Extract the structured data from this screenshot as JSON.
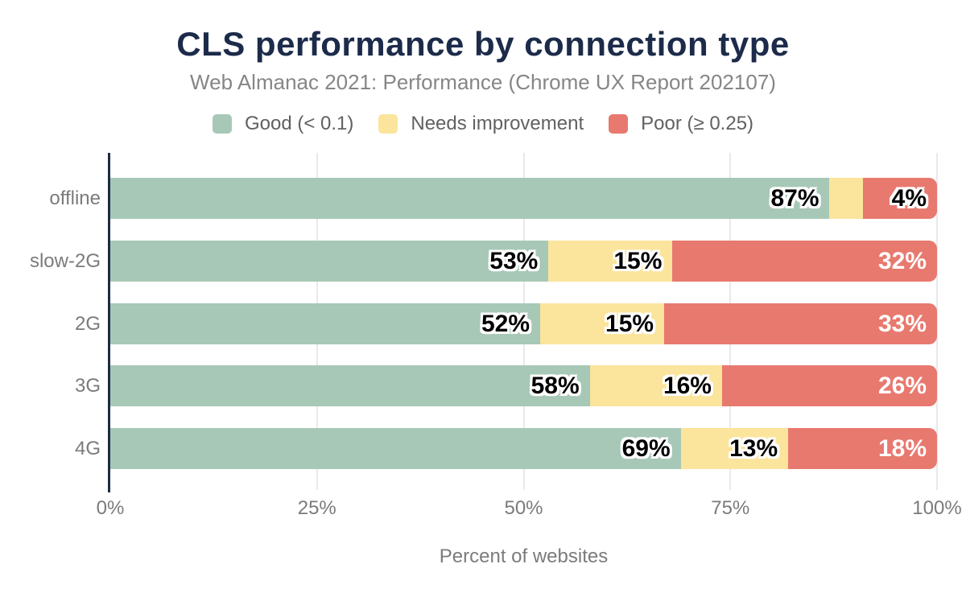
{
  "chart_data": {
    "type": "bar",
    "variant": "horizontal-stacked",
    "title": "CLS performance by connection type",
    "subtitle": "Web Almanac 2021: Performance (Chrome UX Report 202107)",
    "xlabel": "Percent of websites",
    "xlim": [
      0,
      100
    ],
    "x_ticks": [
      {
        "label": "0%",
        "value": 0
      },
      {
        "label": "25%",
        "value": 25
      },
      {
        "label": "50%",
        "value": 50
      },
      {
        "label": "75%",
        "value": 75
      },
      {
        "label": "100%",
        "value": 100
      }
    ],
    "gridlines": true,
    "legend_position": "top",
    "categories": [
      "offline",
      "slow-2G",
      "2G",
      "3G",
      "4G"
    ],
    "series": [
      {
        "name": "Good (< 0.1)",
        "color": "#a7c8b6",
        "values": [
          87,
          53,
          52,
          58,
          69
        ]
      },
      {
        "name": "Needs improvement",
        "color": "#fbe49c",
        "values": [
          4,
          15,
          15,
          16,
          13
        ]
      },
      {
        "name": "Poor (≥ 0.25)",
        "color": "#e8796f",
        "values": [
          9,
          32,
          33,
          26,
          18
        ]
      }
    ],
    "bar_labels": [
      [
        {
          "text": "87%",
          "style": "dark",
          "at_end_of_series": 0
        },
        {
          "text": "4%",
          "style": "dark",
          "at_end_of_series": 2
        }
      ],
      [
        {
          "text": "53%",
          "style": "dark",
          "at_end_of_series": 0
        },
        {
          "text": "15%",
          "style": "dark",
          "at_end_of_series": 1
        },
        {
          "text": "32%",
          "style": "light",
          "at_end_of_series": 2
        }
      ],
      [
        {
          "text": "52%",
          "style": "dark",
          "at_end_of_series": 0
        },
        {
          "text": "15%",
          "style": "dark",
          "at_end_of_series": 1
        },
        {
          "text": "33%",
          "style": "light",
          "at_end_of_series": 2
        }
      ],
      [
        {
          "text": "58%",
          "style": "dark",
          "at_end_of_series": 0
        },
        {
          "text": "16%",
          "style": "dark",
          "at_end_of_series": 1
        },
        {
          "text": "26%",
          "style": "light",
          "at_end_of_series": 2
        }
      ],
      [
        {
          "text": "69%",
          "style": "dark",
          "at_end_of_series": 0
        },
        {
          "text": "13%",
          "style": "dark",
          "at_end_of_series": 1
        },
        {
          "text": "18%",
          "style": "light",
          "at_end_of_series": 2
        }
      ]
    ]
  },
  "colors": {
    "title": "#1c2b4a",
    "subtitle": "#868686",
    "axis_text": "#7b7b7b",
    "legend_text": "#616161",
    "gridline": "#e9e9e9",
    "axis_line": "#1d2b44",
    "label_dark": "#000000",
    "label_light": "#ffffff",
    "background": "#ffffff"
  }
}
